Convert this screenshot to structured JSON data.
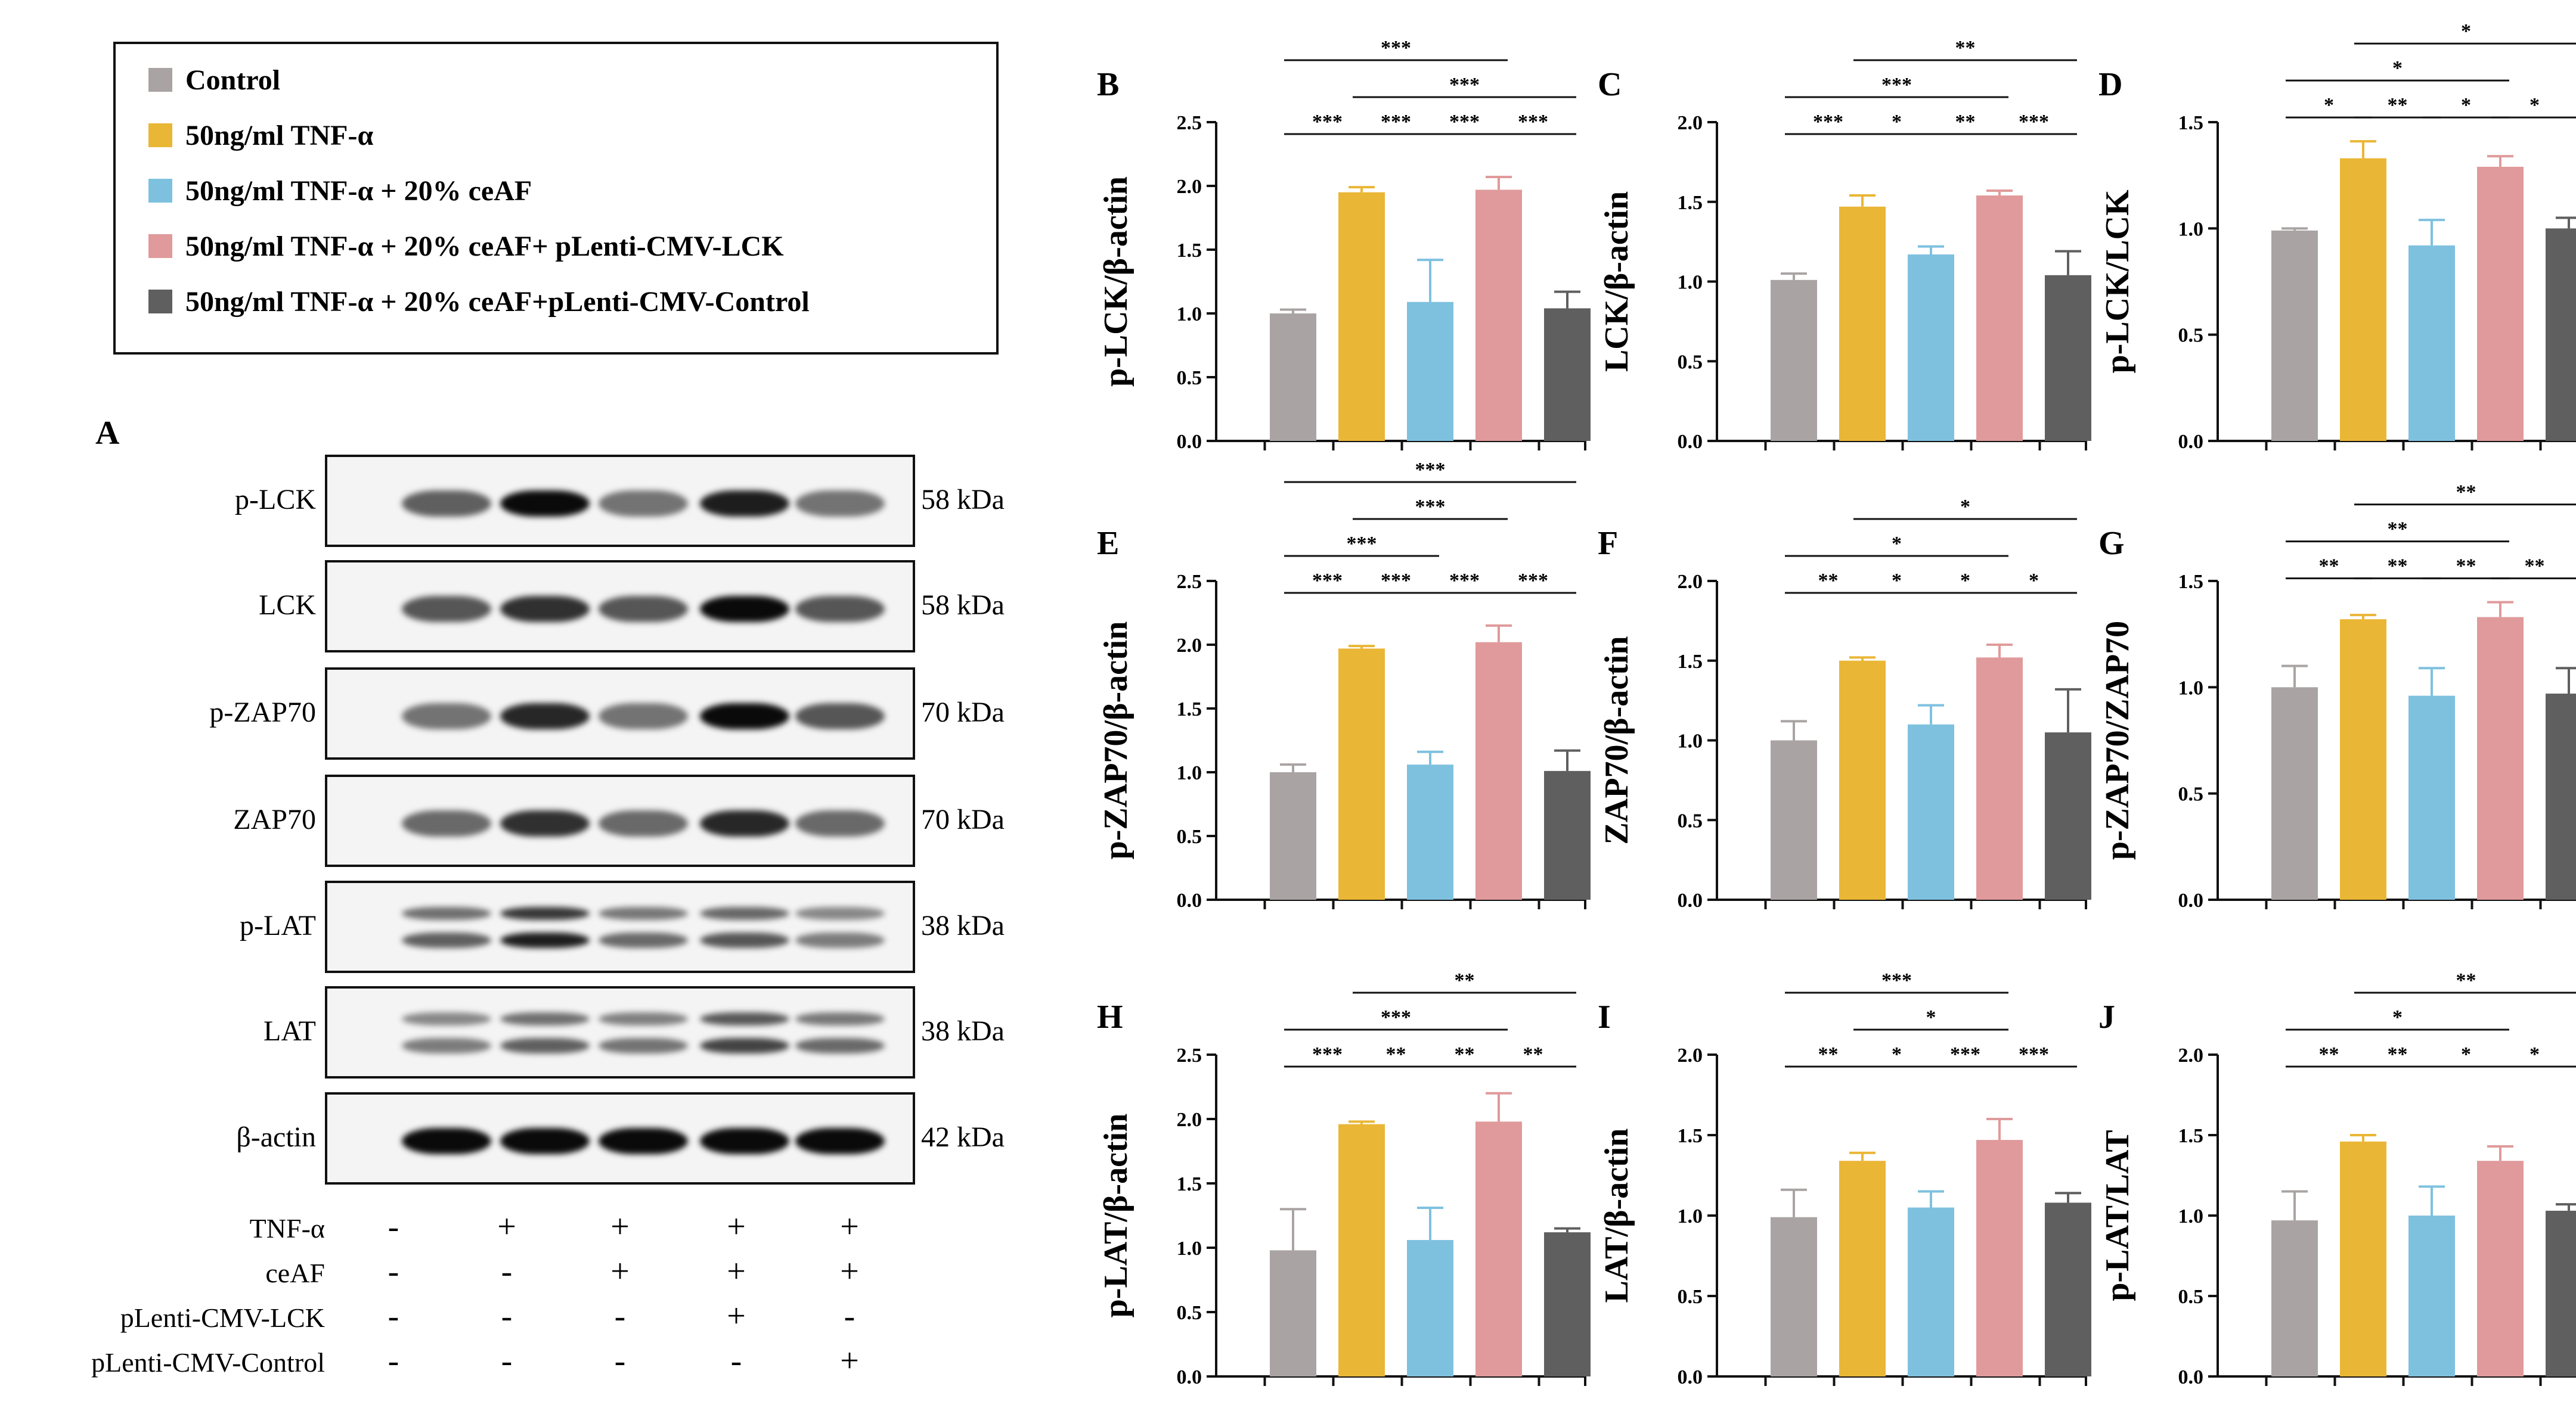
{
  "legend": [
    {
      "label": "Control",
      "color": "#a9a4a3"
    },
    {
      "label": "50ng/ml TNF-α",
      "color": "#eab636"
    },
    {
      "label": "50ng/ml TNF-α + 20% ceAF",
      "color": "#7ec1df"
    },
    {
      "label": "50ng/ml TNF-α + 20% ceAF+ pLenti-CMV-LCK",
      "color": "#e09a9b"
    },
    {
      "label": "50ng/ml TNF-α + 20% ceAF+pLenti-CMV-Control",
      "color": "#5f5f5f"
    }
  ],
  "blot_panel": {
    "letter": "A",
    "rows": [
      {
        "label": "p-LCK",
        "kda": "58 kDa",
        "intensity": [
          0.55,
          1.0,
          0.45,
          0.9,
          0.45
        ],
        "double": false
      },
      {
        "label": "LCK",
        "kda": "58 kDa",
        "intensity": [
          0.6,
          0.8,
          0.6,
          1.0,
          0.6
        ],
        "double": false
      },
      {
        "label": "p-ZAP70",
        "kda": "70 kDa",
        "intensity": [
          0.45,
          0.85,
          0.45,
          1.0,
          0.6
        ],
        "double": false
      },
      {
        "label": "ZAP70",
        "kda": "70 kDa",
        "intensity": [
          0.5,
          0.8,
          0.5,
          0.85,
          0.5
        ],
        "double": false
      },
      {
        "label": "p-LAT",
        "kda": "38 kDa",
        "intensity": [
          0.55,
          0.9,
          0.5,
          0.6,
          0.4
        ],
        "double": true
      },
      {
        "label": "LAT",
        "kda": "38 kDa",
        "intensity": [
          0.4,
          0.55,
          0.45,
          0.7,
          0.5
        ],
        "double": true
      },
      {
        "label": "β-actin",
        "kda": "42 kDa",
        "intensity": [
          1.0,
          1.0,
          1.0,
          1.0,
          1.0
        ],
        "double": false
      }
    ],
    "treatments": [
      {
        "label": "TNF-α",
        "signs": [
          "-",
          "+",
          "+",
          "+",
          "+"
        ]
      },
      {
        "label": "ceAF",
        "signs": [
          "-",
          "-",
          "+",
          "+",
          "+"
        ]
      },
      {
        "label": "pLenti-CMV-LCK",
        "signs": [
          "-",
          "-",
          "-",
          "+",
          "-"
        ]
      },
      {
        "label": "pLenti-CMV-Control",
        "signs": [
          "-",
          "-",
          "-",
          "-",
          "+"
        ]
      }
    ]
  },
  "chart_data": [
    {
      "panel": "B",
      "type": "bar",
      "ylabel": "p-LCK/β-actin",
      "ylim": [
        0,
        2.5
      ],
      "ticks": [
        "0.0",
        "0.5",
        "1.0",
        "1.5",
        "2.0",
        "2.5"
      ],
      "values": [
        1.0,
        1.95,
        1.09,
        1.97,
        1.04
      ],
      "errors": [
        0.03,
        0.04,
        0.33,
        0.1,
        0.13
      ],
      "sig": [
        {
          "a": 0,
          "b": 1,
          "label": "***",
          "level": 0
        },
        {
          "a": 1,
          "b": 2,
          "label": "***",
          "level": 0
        },
        {
          "a": 2,
          "b": 3,
          "label": "***",
          "level": 0
        },
        {
          "a": 3,
          "b": 4,
          "label": "***",
          "level": 0
        },
        {
          "a": 0,
          "b": 3,
          "label": "***",
          "level": 2
        },
        {
          "a": 1,
          "b": 4,
          "label": "***",
          "level": 1
        }
      ]
    },
    {
      "panel": "C",
      "type": "bar",
      "ylabel": "LCK/β-actin",
      "ylim": [
        0,
        2.0
      ],
      "ticks": [
        "0.0",
        "0.5",
        "1.0",
        "1.5",
        "2.0"
      ],
      "values": [
        1.01,
        1.47,
        1.17,
        1.54,
        1.04
      ],
      "errors": [
        0.04,
        0.07,
        0.05,
        0.03,
        0.15
      ],
      "sig": [
        {
          "a": 0,
          "b": 1,
          "label": "***",
          "level": 0
        },
        {
          "a": 1,
          "b": 2,
          "label": "*",
          "level": 0
        },
        {
          "a": 2,
          "b": 3,
          "label": "**",
          "level": 0
        },
        {
          "a": 3,
          "b": 4,
          "label": "***",
          "level": 0
        },
        {
          "a": 0,
          "b": 3,
          "label": "***",
          "level": 1
        },
        {
          "a": 1,
          "b": 4,
          "label": "**",
          "level": 2
        }
      ]
    },
    {
      "panel": "D",
      "type": "bar",
      "ylabel": "p-LCK/LCK",
      "ylim": [
        0,
        1.5
      ],
      "ticks": [
        "0.0",
        "0.5",
        "1.0",
        "1.5"
      ],
      "values": [
        0.99,
        1.33,
        0.92,
        1.29,
        1.0
      ],
      "errors": [
        0.01,
        0.08,
        0.12,
        0.05,
        0.05
      ],
      "sig": [
        {
          "a": 0,
          "b": 1,
          "label": "*",
          "level": 0
        },
        {
          "a": 1,
          "b": 2,
          "label": "**",
          "level": 0
        },
        {
          "a": 2,
          "b": 3,
          "label": "*",
          "level": 0
        },
        {
          "a": 3,
          "b": 4,
          "label": "*",
          "level": 0
        },
        {
          "a": 0,
          "b": 3,
          "label": "*",
          "level": 1
        },
        {
          "a": 1,
          "b": 4,
          "label": "*",
          "level": 2
        }
      ]
    },
    {
      "panel": "E",
      "type": "bar",
      "ylabel": "p-ZAP70/β-actin",
      "ylim": [
        0,
        2.5
      ],
      "ticks": [
        "0.0",
        "0.5",
        "1.0",
        "1.5",
        "2.0",
        "2.5"
      ],
      "values": [
        1.0,
        1.97,
        1.06,
        2.02,
        1.01
      ],
      "errors": [
        0.06,
        0.02,
        0.1,
        0.13,
        0.16
      ],
      "sig": [
        {
          "a": 0,
          "b": 1,
          "label": "***",
          "level": 0
        },
        {
          "a": 1,
          "b": 2,
          "label": "***",
          "level": 0
        },
        {
          "a": 2,
          "b": 3,
          "label": "***",
          "level": 0
        },
        {
          "a": 3,
          "b": 4,
          "label": "***",
          "level": 0
        },
        {
          "a": 0,
          "b": 2,
          "label": "***",
          "level": 1
        },
        {
          "a": 1,
          "b": 3,
          "label": "***",
          "level": 2
        },
        {
          "a": 0,
          "b": 4,
          "label": "***",
          "level": 3
        }
      ]
    },
    {
      "panel": "F",
      "type": "bar",
      "ylabel": "ZAP70/β-actin",
      "ylim": [
        0,
        2.0
      ],
      "ticks": [
        "0.0",
        "0.5",
        "1.0",
        "1.5",
        "2.0"
      ],
      "values": [
        1.0,
        1.5,
        1.1,
        1.52,
        1.05
      ],
      "errors": [
        0.12,
        0.02,
        0.12,
        0.08,
        0.27
      ],
      "sig": [
        {
          "a": 0,
          "b": 1,
          "label": "**",
          "level": 0
        },
        {
          "a": 1,
          "b": 2,
          "label": "*",
          "level": 0
        },
        {
          "a": 2,
          "b": 3,
          "label": "*",
          "level": 0
        },
        {
          "a": 3,
          "b": 4,
          "label": "*",
          "level": 0
        },
        {
          "a": 0,
          "b": 3,
          "label": "*",
          "level": 1
        },
        {
          "a": 1,
          "b": 4,
          "label": "*",
          "level": 2
        }
      ]
    },
    {
      "panel": "G",
      "type": "bar",
      "ylabel": "p-ZAP70/ZAP70",
      "ylim": [
        0,
        1.5
      ],
      "ticks": [
        "0.0",
        "0.5",
        "1.0",
        "1.5"
      ],
      "values": [
        1.0,
        1.32,
        0.96,
        1.33,
        0.97
      ],
      "errors": [
        0.1,
        0.02,
        0.13,
        0.07,
        0.12
      ],
      "sig": [
        {
          "a": 0,
          "b": 1,
          "label": "**",
          "level": 0
        },
        {
          "a": 1,
          "b": 2,
          "label": "**",
          "level": 0
        },
        {
          "a": 2,
          "b": 3,
          "label": "**",
          "level": 0
        },
        {
          "a": 3,
          "b": 4,
          "label": "**",
          "level": 0
        },
        {
          "a": 0,
          "b": 3,
          "label": "**",
          "level": 1
        },
        {
          "a": 1,
          "b": 4,
          "label": "**",
          "level": 2
        }
      ]
    },
    {
      "panel": "H",
      "type": "bar",
      "ylabel": "p-LAT/β-actin",
      "ylim": [
        0,
        2.5
      ],
      "ticks": [
        "0.0",
        "0.5",
        "1.0",
        "1.5",
        "2.0",
        "2.5"
      ],
      "values": [
        0.98,
        1.96,
        1.06,
        1.98,
        1.12
      ],
      "errors": [
        0.32,
        0.02,
        0.25,
        0.22,
        0.03
      ],
      "sig": [
        {
          "a": 0,
          "b": 1,
          "label": "***",
          "level": 0
        },
        {
          "a": 1,
          "b": 2,
          "label": "**",
          "level": 0
        },
        {
          "a": 2,
          "b": 3,
          "label": "**",
          "level": 0
        },
        {
          "a": 3,
          "b": 4,
          "label": "**",
          "level": 0
        },
        {
          "a": 0,
          "b": 3,
          "label": "***",
          "level": 1
        },
        {
          "a": 1,
          "b": 4,
          "label": "**",
          "level": 2
        }
      ]
    },
    {
      "panel": "I",
      "type": "bar",
      "ylabel": "LAT/β-actin",
      "ylim": [
        0,
        2.0
      ],
      "ticks": [
        "0.0",
        "0.5",
        "1.0",
        "1.5",
        "2.0"
      ],
      "values": [
        0.99,
        1.34,
        1.05,
        1.47,
        1.08
      ],
      "errors": [
        0.17,
        0.05,
        0.1,
        0.13,
        0.06
      ],
      "sig": [
        {
          "a": 0,
          "b": 1,
          "label": "**",
          "level": 0
        },
        {
          "a": 1,
          "b": 2,
          "label": "*",
          "level": 0
        },
        {
          "a": 2,
          "b": 3,
          "label": "***",
          "level": 0
        },
        {
          "a": 3,
          "b": 4,
          "label": "***",
          "level": 0
        },
        {
          "a": 1,
          "b": 3,
          "label": "*",
          "level": 1
        },
        {
          "a": 0,
          "b": 3,
          "label": "***",
          "level": 2
        }
      ]
    },
    {
      "panel": "J",
      "type": "bar",
      "ylabel": "p-LAT/LAT",
      "ylim": [
        0,
        2.0
      ],
      "ticks": [
        "0.0",
        "0.5",
        "1.0",
        "1.5",
        "2.0"
      ],
      "values": [
        0.97,
        1.46,
        1.0,
        1.34,
        1.03
      ],
      "errors": [
        0.18,
        0.04,
        0.18,
        0.09,
        0.04
      ],
      "sig": [
        {
          "a": 0,
          "b": 1,
          "label": "**",
          "level": 0
        },
        {
          "a": 1,
          "b": 2,
          "label": "**",
          "level": 0
        },
        {
          "a": 2,
          "b": 3,
          "label": "*",
          "level": 0
        },
        {
          "a": 3,
          "b": 4,
          "label": "*",
          "level": 0
        },
        {
          "a": 0,
          "b": 3,
          "label": "*",
          "level": 1
        },
        {
          "a": 1,
          "b": 4,
          "label": "**",
          "level": 2
        }
      ]
    }
  ]
}
